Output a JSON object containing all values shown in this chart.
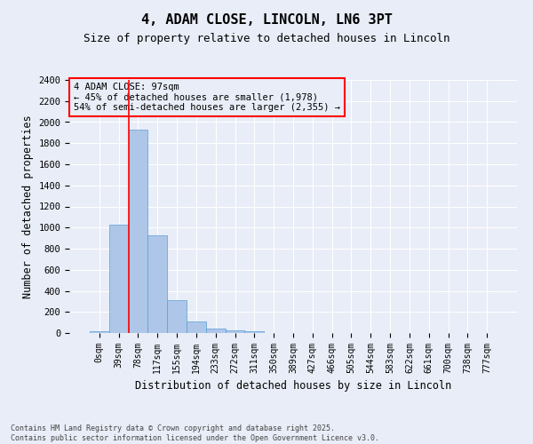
{
  "title_line1": "4, ADAM CLOSE, LINCOLN, LN6 3PT",
  "title_line2": "Size of property relative to detached houses in Lincoln",
  "xlabel": "Distribution of detached houses by size in Lincoln",
  "ylabel": "Number of detached properties",
  "bar_values": [
    15,
    1025,
    1925,
    925,
    310,
    110,
    45,
    25,
    15,
    0,
    0,
    0,
    0,
    0,
    0,
    0,
    0,
    0,
    0,
    0,
    0
  ],
  "bar_labels": [
    "0sqm",
    "39sqm",
    "78sqm",
    "117sqm",
    "155sqm",
    "194sqm",
    "233sqm",
    "272sqm",
    "311sqm",
    "350sqm",
    "389sqm",
    "427sqm",
    "466sqm",
    "505sqm",
    "544sqm",
    "583sqm",
    "622sqm",
    "661sqm",
    "700sqm",
    "738sqm",
    "777sqm"
  ],
  "bar_color": "#aec6e8",
  "bar_edgecolor": "#5a9fd4",
  "vline_color": "red",
  "ylim_max": 2400,
  "yticks": [
    0,
    200,
    400,
    600,
    800,
    1000,
    1200,
    1400,
    1600,
    1800,
    2000,
    2200,
    2400
  ],
  "annotation_title": "4 ADAM CLOSE: 97sqm",
  "annotation_line2": "← 45% of detached houses are smaller (1,978)",
  "annotation_line3": "54% of semi-detached houses are larger (2,355) →",
  "background_color": "#e8edf7",
  "grid_color": "white",
  "footnote_line1": "Contains HM Land Registry data © Crown copyright and database right 2025.",
  "footnote_line2": "Contains public sector information licensed under the Open Government Licence v3.0."
}
